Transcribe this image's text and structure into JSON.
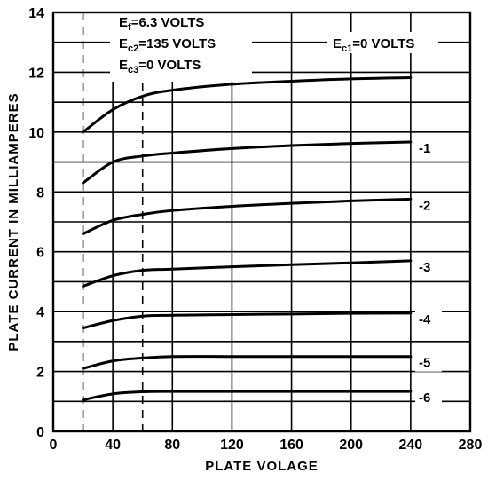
{
  "chart_data": {
    "type": "line",
    "xlabel": "PLATE VOLAGE",
    "ylabel": "PLATE CURRENT IN MILLIAMPERES",
    "xlim": [
      0,
      280
    ],
    "ylim": [
      0,
      14
    ],
    "xticks": [
      "0",
      "40",
      "80",
      "120",
      "160",
      "200",
      "240",
      "280"
    ],
    "yticks": [
      "0",
      "2",
      "4",
      "6",
      "8",
      "10",
      "12",
      "14"
    ],
    "grid": true,
    "conditions": {
      "ef": {
        "main": "E",
        "sub": "f",
        "rest": "=6.3 VOLTS"
      },
      "ec2": {
        "main": "E",
        "sub": "c2",
        "rest": "=135 VOLTS"
      },
      "ec3": {
        "main": "E",
        "sub": "c3",
        "rest": "=0 VOLTS"
      }
    },
    "ec1_label": {
      "main": "E",
      "sub": "c1",
      "rest": "=0 VOLTS"
    },
    "series": [
      {
        "name": "0",
        "x": [
          20,
          40,
          60,
          80,
          120,
          160,
          200,
          240
        ],
        "y": [
          10.0,
          10.75,
          11.2,
          11.4,
          11.6,
          11.7,
          11.78,
          11.82
        ]
      },
      {
        "name": "-1",
        "x": [
          20,
          40,
          60,
          80,
          120,
          160,
          200,
          240
        ],
        "y": [
          8.3,
          9.0,
          9.2,
          9.3,
          9.45,
          9.55,
          9.62,
          9.67
        ]
      },
      {
        "name": "-2",
        "x": [
          20,
          40,
          60,
          80,
          120,
          160,
          200,
          240
        ],
        "y": [
          6.6,
          7.05,
          7.25,
          7.38,
          7.52,
          7.62,
          7.7,
          7.76
        ]
      },
      {
        "name": "-3",
        "x": [
          20,
          40,
          60,
          80,
          120,
          160,
          200,
          240
        ],
        "y": [
          4.85,
          5.2,
          5.38,
          5.42,
          5.5,
          5.57,
          5.63,
          5.7
        ]
      },
      {
        "name": "-4",
        "x": [
          20,
          40,
          60,
          80,
          120,
          160,
          200,
          240
        ],
        "y": [
          3.45,
          3.7,
          3.85,
          3.88,
          3.9,
          3.92,
          3.94,
          3.95
        ]
      },
      {
        "name": "-5",
        "x": [
          20,
          40,
          60,
          80,
          120,
          160,
          200,
          240
        ],
        "y": [
          2.1,
          2.35,
          2.45,
          2.5,
          2.5,
          2.5,
          2.5,
          2.5
        ]
      },
      {
        "name": "-6",
        "x": [
          20,
          40,
          60,
          80,
          120,
          160,
          200,
          240
        ],
        "y": [
          1.05,
          1.25,
          1.32,
          1.33,
          1.33,
          1.33,
          1.33,
          1.33
        ]
      }
    ],
    "curve_labels": [
      "-1",
      "-2",
      "-3",
      "-4",
      "-5",
      "-6"
    ]
  }
}
